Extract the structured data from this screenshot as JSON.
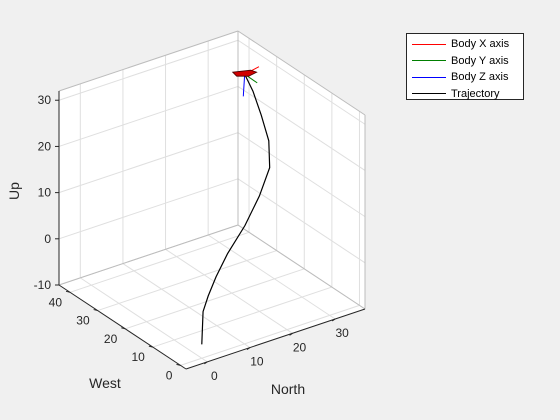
{
  "chart_data": {
    "type": "line3d",
    "title": "",
    "xlabel": "North",
    "ylabel": "West",
    "zlabel": "Up",
    "xlim": [
      -5,
      37
    ],
    "ylim": [
      -2,
      44
    ],
    "zlim": [
      -10,
      32
    ],
    "xticks": [
      "0",
      "10",
      "20",
      "30"
    ],
    "yticks": [
      "0",
      "10",
      "20",
      "30",
      "40"
    ],
    "zticks": [
      "-10",
      "0",
      "10",
      "20",
      "30"
    ],
    "xtick_values": [
      0,
      10,
      20,
      30
    ],
    "ytick_values": [
      0,
      10,
      20,
      30,
      40
    ],
    "ztick_values": [
      -10,
      0,
      10,
      20,
      30
    ],
    "grid": true,
    "legend_position": "outside top-right",
    "legend": [
      {
        "name": "Body X axis",
        "color": "#ff0000"
      },
      {
        "name": "Body Y axis",
        "color": "#007f00"
      },
      {
        "name": "Body Z axis",
        "color": "#0000ff"
      },
      {
        "name": "Trajectory",
        "color": "#000000"
      }
    ],
    "trajectory": {
      "x": [
        0,
        0.3,
        1.5,
        4,
        8,
        14,
        20,
        25,
        29,
        29.5,
        29.5,
        29.5
      ],
      "y": [
        0,
        0,
        0,
        1,
        3,
        6,
        10,
        14,
        20.5,
        24,
        27,
        30
      ],
      "z": [
        -7,
        0,
        3,
        6,
        9,
        12,
        15,
        18,
        20,
        24,
        28,
        30.5
      ]
    },
    "body_axes_origin": [
      29.5,
      30,
      30.5
    ],
    "body_axes": {
      "x_axis": [
        4,
        1,
        0
      ],
      "y_axis": [
        1,
        -3,
        -1
      ],
      "z_axis": [
        0,
        0.5,
        -5
      ]
    }
  }
}
